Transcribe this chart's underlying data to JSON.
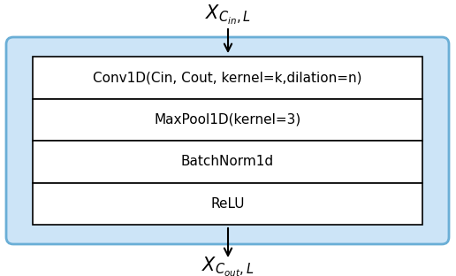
{
  "bg_box_color": "#cce4f7",
  "bg_box_edge_color": "#6aaed6",
  "block_fill_color": "#ffffff",
  "block_edge_color": "#000000",
  "arrow_color": "#000000",
  "text_color": "#000000",
  "blocks": [
    "Conv1D(Cin, Cout, kernel=k,dilation=n)",
    "MaxPool1D(kernel=3)",
    "BatchNorm1d",
    "ReLU"
  ],
  "input_label": "$X_{C_{in},L}$",
  "output_label": "$X_{C_{out},L}$",
  "block_fontsize": 11,
  "label_fontsize": 15,
  "figsize": [
    5.16,
    3.12
  ],
  "dpi": 100
}
